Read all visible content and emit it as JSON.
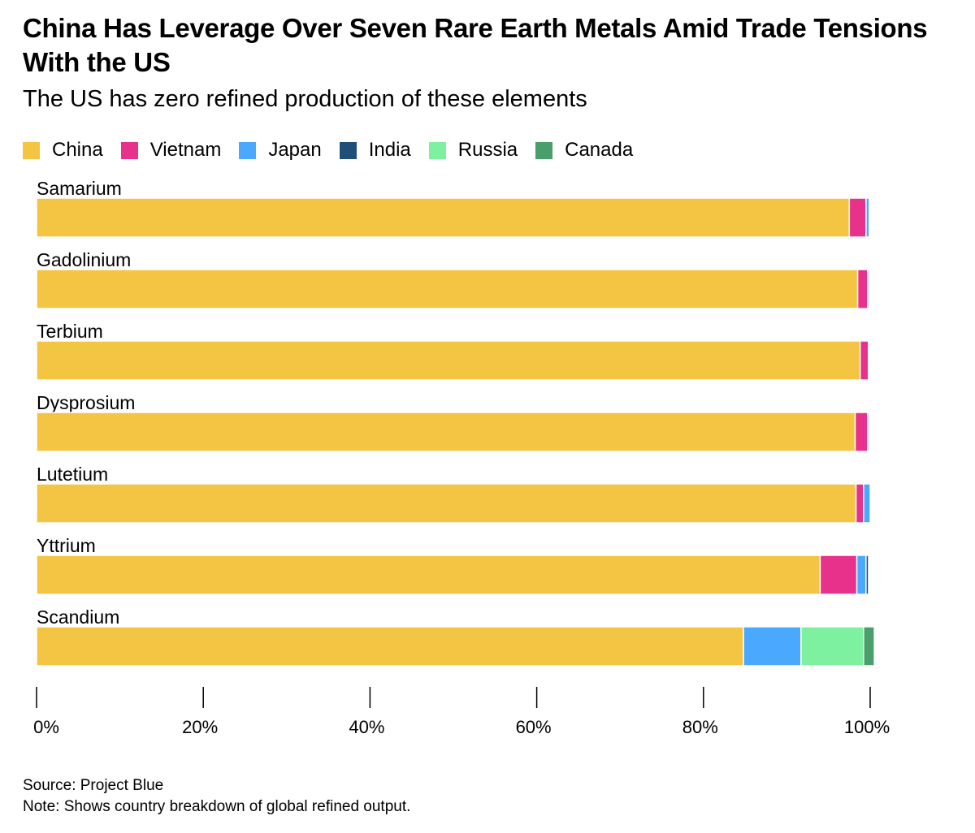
{
  "chart_data": {
    "type": "bar",
    "orientation": "horizontal",
    "stacked": true,
    "title": "China Has Leverage Over Seven Rare Earth Metals Amid Trade Tensions With the US",
    "subtitle": "The US has zero refined production of these elements",
    "categories": [
      "Samarium",
      "Gadolinium",
      "Terbium",
      "Dysprosium",
      "Lutetium",
      "Yttrium",
      "Scandium"
    ],
    "series": [
      {
        "name": "China",
        "color": "#f4c542",
        "values": [
          97.5,
          98.5,
          98.8,
          98.2,
          98.3,
          94.0,
          84.8
        ]
      },
      {
        "name": "Vietnam",
        "color": "#e8318a",
        "values": [
          2.0,
          1.2,
          1.0,
          1.5,
          0.9,
          4.4,
          0
        ]
      },
      {
        "name": "Japan",
        "color": "#4aa8ff",
        "values": [
          0.4,
          0.2,
          0.1,
          0.2,
          0.8,
          1.1,
          6.9
        ]
      },
      {
        "name": "India",
        "color": "#1f4e79",
        "values": [
          0.1,
          0.1,
          0.1,
          0.1,
          0,
          0.3,
          0
        ]
      },
      {
        "name": "Russia",
        "color": "#7ef1a1",
        "values": [
          0,
          0,
          0,
          0,
          0,
          0,
          7.5
        ]
      },
      {
        "name": "Canada",
        "color": "#4a9e6b",
        "values": [
          0,
          0,
          0,
          0,
          0,
          0,
          1.3
        ]
      }
    ],
    "xlim": [
      0,
      100
    ],
    "xticks": [
      "0%",
      "20%",
      "40%",
      "60%",
      "80%",
      "100%"
    ],
    "grid": false,
    "legend_position": "top-left"
  },
  "footer": {
    "source": "Source: Project Blue",
    "note": "Note: Shows country breakdown of global refined output."
  }
}
